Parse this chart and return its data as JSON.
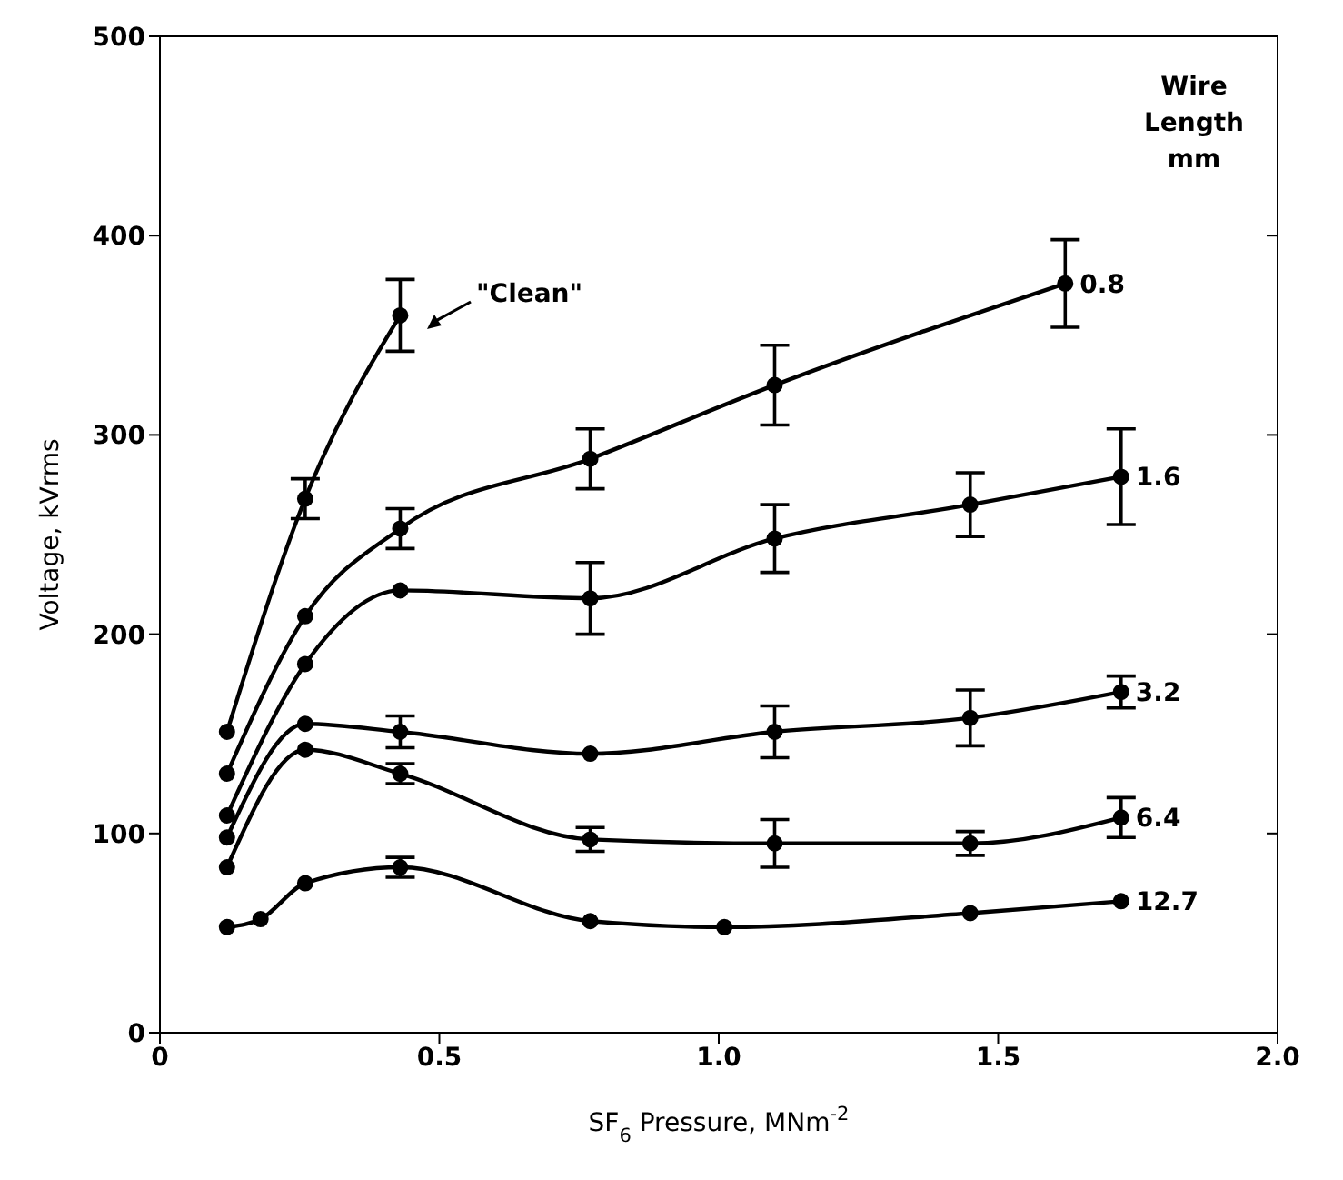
{
  "chart_data": {
    "type": "line",
    "xlabel": "SF$_{6}$ Pressure, MNm$^{-2}$",
    "ylabel": "Voltage, kVrms",
    "legend_title": "Wire Length mm",
    "annotations": [
      "\"Clean\""
    ],
    "series": [
      {
        "color": "#000000",
        "x": [
          0.12,
          0.26,
          0.43
        ],
        "values": [
          151,
          268,
          360
        ],
        "errors": [
          null,
          10,
          18
        ]
      },
      {
        "name": "0.8",
        "color": "#000000",
        "x": [
          0.12,
          0.26,
          0.43,
          0.77,
          1.1,
          1.62
        ],
        "values": [
          130,
          209,
          253,
          288,
          325,
          376
        ],
        "errors": [
          null,
          null,
          10,
          15,
          20,
          22
        ]
      },
      {
        "name": "1.6",
        "color": "#000000",
        "x": [
          0.12,
          0.26,
          0.43,
          0.77,
          1.1,
          1.45,
          1.72
        ],
        "values": [
          109,
          185,
          222,
          218,
          248,
          265,
          279
        ],
        "errors": [
          null,
          null,
          null,
          18,
          17,
          16,
          24
        ]
      },
      {
        "name": "3.2",
        "color": "#000000",
        "x": [
          0.12,
          0.26,
          0.43,
          0.77,
          1.1,
          1.45,
          1.72
        ],
        "values": [
          98,
          155,
          151,
          140,
          151,
          158,
          171
        ],
        "errors": [
          null,
          null,
          8,
          null,
          13,
          14,
          8
        ]
      },
      {
        "name": "6.4",
        "color": "#000000",
        "x": [
          0.12,
          0.26,
          0.43,
          0.77,
          1.1,
          1.45,
          1.72
        ],
        "values": [
          83,
          142,
          130,
          97,
          95,
          95,
          108
        ],
        "errors": [
          null,
          null,
          5,
          6,
          12,
          6,
          10
        ]
      },
      {
        "name": "12.7",
        "color": "#000000",
        "x": [
          0.12,
          0.18,
          0.26,
          0.43,
          0.77,
          1.01,
          1.45,
          1.72
        ],
        "values": [
          53,
          57,
          75,
          83,
          56,
          53,
          60,
          66
        ],
        "errors": [
          null,
          null,
          null,
          5,
          null,
          null,
          null,
          null
        ]
      }
    ],
    "xlim": [
      0,
      2
    ],
    "xticks": [
      0,
      0.5,
      {
        "value": 1,
        "label": "1.0"
      },
      1.5,
      {
        "value": 2,
        "label": "2.0"
      }
    ],
    "ylim": [
      0,
      500
    ],
    "yticks": [
      0,
      100,
      200,
      300,
      400,
      500
    ],
    "grid": false,
    "legend": false,
    "marker": "circle",
    "line_style": "solid"
  }
}
